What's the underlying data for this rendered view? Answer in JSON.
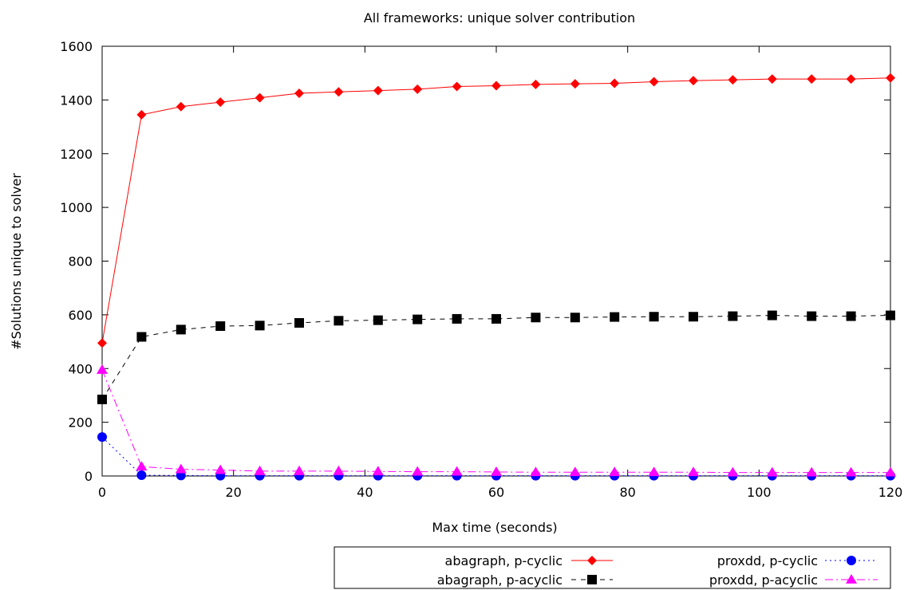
{
  "chart_data": {
    "type": "line",
    "title": "All frameworks: unique solver contribution",
    "xlabel": "Max time (seconds)",
    "ylabel": "#Solutions unique to solver",
    "xlim": [
      0,
      120
    ],
    "ylim": [
      0,
      1600
    ],
    "xticks": [
      0,
      20,
      40,
      60,
      80,
      100,
      120
    ],
    "yticks": [
      0,
      200,
      400,
      600,
      800,
      1000,
      1200,
      1400,
      1600
    ],
    "grid": false,
    "legend_position": "bottom-right, below plot",
    "x": [
      0,
      6,
      12,
      18,
      24,
      30,
      36,
      42,
      48,
      54,
      60,
      66,
      72,
      78,
      84,
      90,
      96,
      102,
      108,
      114,
      120
    ],
    "series": [
      {
        "name": "abagraph, p-cyclic",
        "color": "#ff0000",
        "marker": "diamond",
        "line": "solid",
        "values": [
          495,
          1345,
          1375,
          1392,
          1408,
          1425,
          1430,
          1435,
          1440,
          1450,
          1453,
          1458,
          1460,
          1462,
          1468,
          1472,
          1475,
          1478,
          1478,
          1478,
          1482
        ]
      },
      {
        "name": "abagraph, p-acyclic",
        "color": "#000000",
        "marker": "square",
        "line": "dashed",
        "values": [
          285,
          518,
          545,
          558,
          560,
          570,
          578,
          580,
          583,
          585,
          585,
          590,
          590,
          592,
          593,
          593,
          595,
          598,
          595,
          595,
          598
        ]
      },
      {
        "name": "proxdd, p-cyclic",
        "color": "#0000ff",
        "marker": "circle",
        "line": "dotted",
        "values": [
          145,
          3,
          2,
          1,
          1,
          1,
          1,
          1,
          1,
          1,
          1,
          1,
          1,
          1,
          1,
          1,
          1,
          1,
          1,
          1,
          1
        ]
      },
      {
        "name": "proxdd, p-acyclic",
        "color": "#ff00ff",
        "marker": "triangle",
        "line": "dashdot",
        "values": [
          395,
          35,
          25,
          22,
          18,
          18,
          18,
          17,
          16,
          16,
          15,
          14,
          14,
          14,
          14,
          14,
          13,
          13,
          13,
          13,
          13
        ]
      }
    ]
  }
}
